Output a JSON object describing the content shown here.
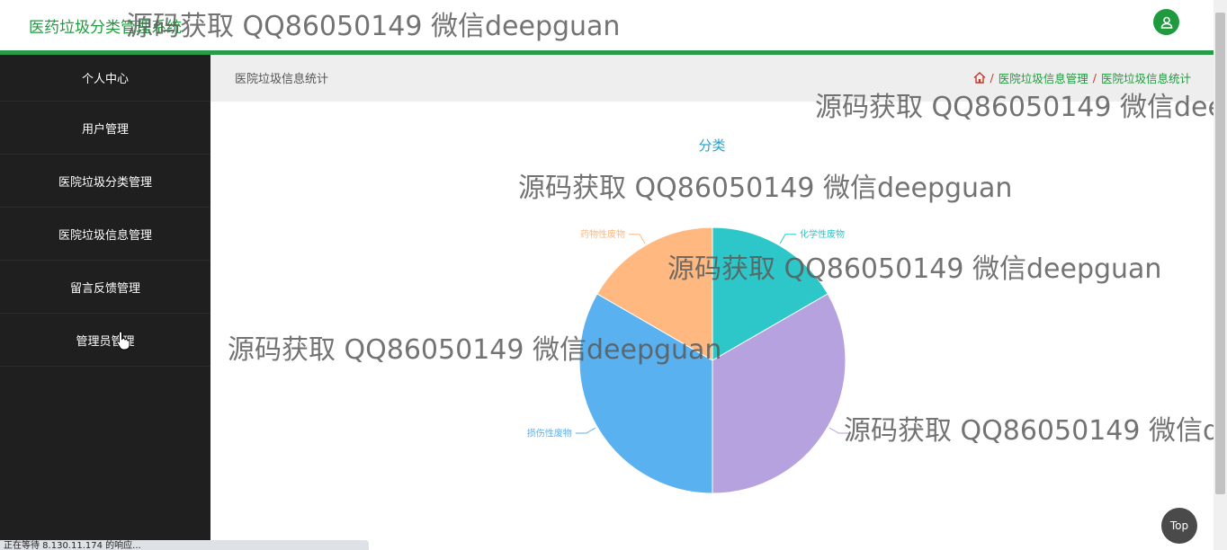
{
  "header": {
    "app_title": "医药垃圾分类管理系统",
    "avatar_icon": "user-icon",
    "accent": "#1f9a3f"
  },
  "sidebar": {
    "items": [
      {
        "label": "个人中心"
      },
      {
        "label": "用户管理"
      },
      {
        "label": "医院垃圾分类管理"
      },
      {
        "label": "医院垃圾信息管理"
      },
      {
        "label": "留言反馈管理"
      },
      {
        "label": "管理员管理"
      }
    ]
  },
  "page": {
    "heading": "医院垃圾信息统计",
    "breadcrumb": {
      "home_icon": "home-icon",
      "items": [
        "医院垃圾信息管理",
        "医院垃圾信息统计"
      ],
      "separator": "/"
    }
  },
  "chart_data": {
    "type": "pie",
    "title": "分类",
    "slices": [
      {
        "label": "化学性废物",
        "value": 1,
        "color": "#2ec7c9"
      },
      {
        "label": "",
        "value": 2,
        "color": "#b6a2de"
      },
      {
        "label": "损伤性废物",
        "value": 2,
        "color": "#5ab1ef"
      },
      {
        "label": "药物性废物",
        "value": 1,
        "color": "#ffb980"
      }
    ]
  },
  "watermark_text": "源码获取 QQ86050149 微信deepguan",
  "top_button": "Top",
  "status_text": "正在等待 8.130.11.174 的响应..."
}
